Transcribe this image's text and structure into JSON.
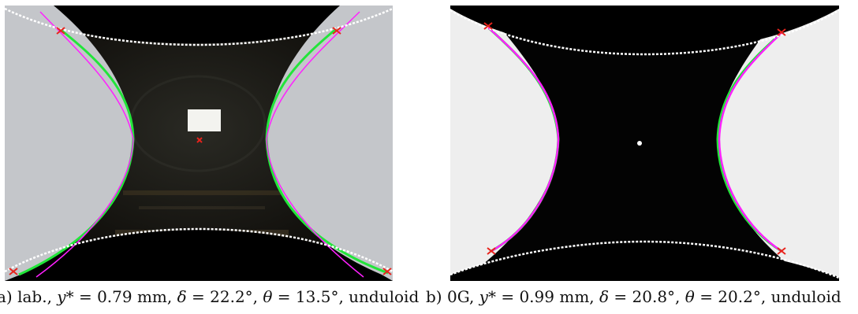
{
  "panels": [
    {
      "caption_label": "a) lab.,",
      "y_star_label": "y*",
      "y_star_value": "= 0.79 mm,",
      "delta_label": "δ",
      "delta_value": "= 22.2°,",
      "theta_label": "θ",
      "theta_value": "= 13.5°,",
      "shape": "unduloid"
    },
    {
      "caption_label": "b) 0G,",
      "y_star_label": "y*",
      "y_star_value": "= 0.99 mm,",
      "delta_label": "δ",
      "delta_value": "= 20.8°,",
      "theta_label": "θ",
      "theta_value": "= 20.2°,",
      "shape": "unduloid"
    }
  ],
  "colors": {
    "background_dark": "#0b0906",
    "wall_grey_a": "#c4c6ca",
    "wall_grey_b": "#eeeeee",
    "contour_green": "#22e53a",
    "fit_magenta": "#ff20ff",
    "marker_red": "#e8231c",
    "boundary_white": "#ffffff"
  }
}
